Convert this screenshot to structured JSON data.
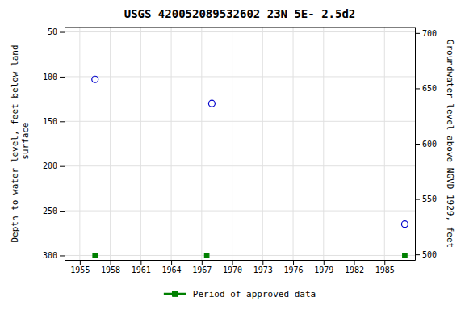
{
  "chart_data": {
    "type": "scatter",
    "title": "USGS 420052089532602 23N 5E- 2.5d2",
    "ylabel": "Depth to water level, feet below land\n surface",
    "y2label": "Groundwater level above NGVD 1929, feet",
    "xlim": [
      1953.5,
      1988.0
    ],
    "xticks": [
      1955,
      1958,
      1961,
      1964,
      1967,
      1970,
      1973,
      1976,
      1979,
      1982,
      1985
    ],
    "ylim": [
      305,
      45
    ],
    "yticks": [
      50,
      100,
      150,
      200,
      250,
      300
    ],
    "y2lim": [
      495,
      705
    ],
    "y2ticks": [
      500,
      550,
      600,
      650,
      700
    ],
    "grid": true,
    "legend": "bottom",
    "series": [
      {
        "color": "#0000cc",
        "marker": "circle",
        "x": [
          1956.5,
          1968.0,
          1987.0
        ],
        "values": [
          103,
          130,
          265
        ]
      },
      {
        "name": "Period of approved data",
        "color": "#008000",
        "marker": "square",
        "x": [
          1956.5,
          1967.5,
          1987.0
        ],
        "values": [
          300,
          300,
          300
        ]
      }
    ]
  }
}
